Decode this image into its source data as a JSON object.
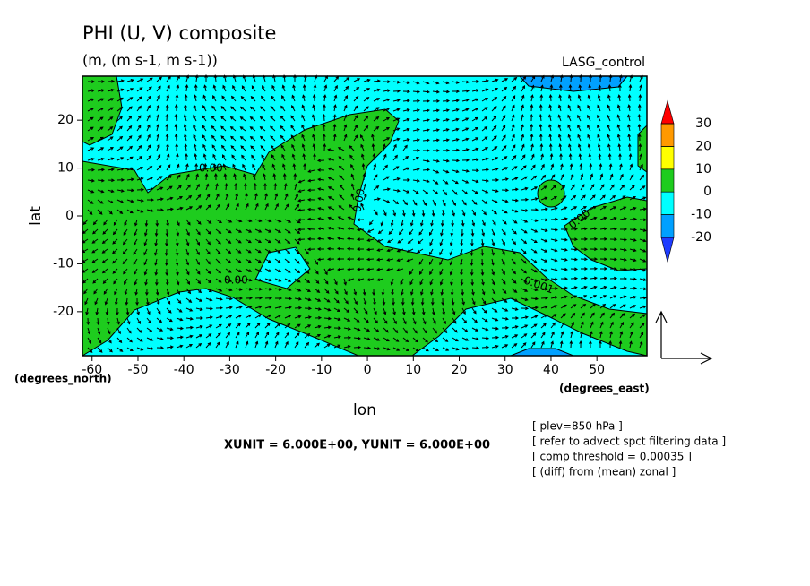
{
  "chart_data": {
    "type": "contour",
    "title": "PHI (U, V) composite",
    "subtitle": "(m, (m s-1, m s-1))",
    "label": "LASG_control",
    "x_label": "lon",
    "y_label": "lat",
    "x_units": "(degrees_east)",
    "y_units": "(degrees_north)",
    "vector_scale": "XUNIT = 6.000E+00, YUNIT = 6.000E+00",
    "notes": [
      "[ plev=850 hPa ]",
      "[ refer to advect spct filtering data ]",
      "[ comp threshold = 0.00035 ]",
      "[ (diff) from (mean) zonal ]"
    ],
    "contour_labels": [
      "0.00",
      "0.00",
      "0.00",
      "0.00",
      "0.001"
    ],
    "xlim": [
      -62.1,
      60.9
    ],
    "ylim": [
      -29.2,
      29.2
    ],
    "xticks": [
      -60,
      -50,
      -40,
      -30,
      -20,
      -10,
      0,
      10,
      20,
      30,
      40,
      50
    ],
    "yticks": [
      -20,
      -10,
      0,
      10,
      20
    ],
    "levels": [
      -20,
      -10,
      0,
      10,
      20,
      30
    ],
    "colors": [
      "#1e3cff",
      "#00a0ff",
      "#00ffff",
      "#1ecc1e",
      "#ffff00",
      "#ff9900",
      "#ff0000"
    ]
  }
}
